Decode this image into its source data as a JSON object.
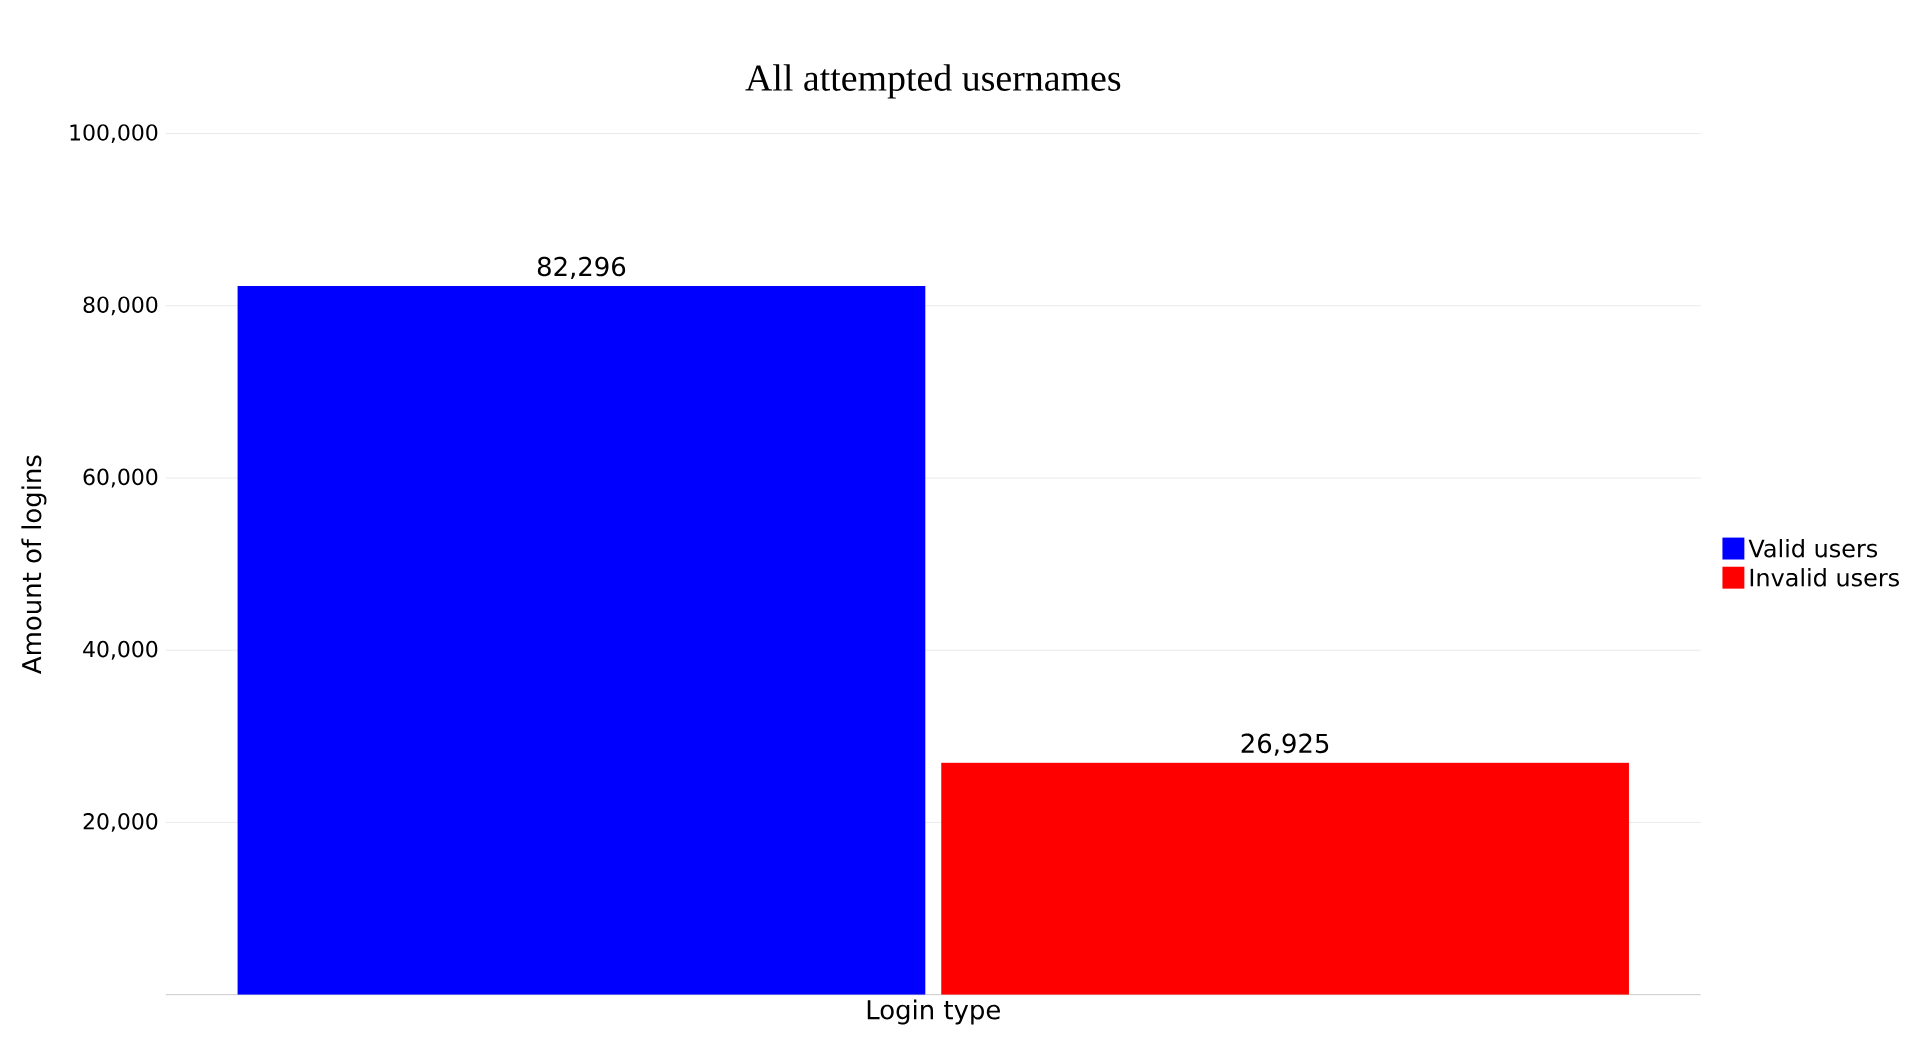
{
  "chart_data": {
    "type": "bar",
    "title": "All attempted usernames",
    "xlabel": "Login type",
    "ylabel": "Amount of logins",
    "categories": [
      null
    ],
    "series": [
      {
        "name": "Valid users",
        "color": "#0000ff",
        "values": [
          82296
        ],
        "value_labels": [
          "82,296"
        ]
      },
      {
        "name": "Invalid users",
        "color": "#ff0000",
        "values": [
          26925
        ],
        "value_labels": [
          "26,925"
        ]
      }
    ],
    "ylim": [
      0,
      100000
    ],
    "yticks": [
      {
        "value": 20000,
        "label": "20,000"
      },
      {
        "value": 40000,
        "label": "40,000"
      },
      {
        "value": 60000,
        "label": "60,000"
      },
      {
        "value": 80000,
        "label": "80,000"
      },
      {
        "value": 100000,
        "label": "100,000"
      }
    ],
    "grid": "y",
    "legend": "right"
  }
}
